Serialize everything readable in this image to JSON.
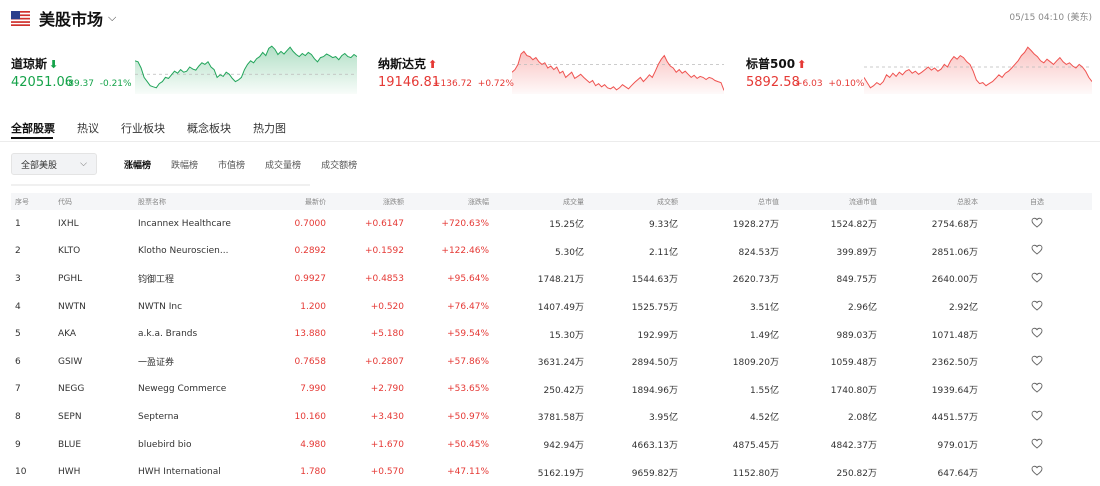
{
  "header": {
    "title": "美股市场",
    "time": "05/15 04:10 (美东)"
  },
  "indices": [
    {
      "name": "道琼斯",
      "direction": "down",
      "arrow": "⬇",
      "price": "42051.06",
      "change": "-89.37",
      "pct": "-0.21%",
      "series": [
        0.62,
        0.6,
        0.48,
        0.3,
        0.22,
        0.14,
        0.12,
        0.1,
        0.18,
        0.22,
        0.3,
        0.28,
        0.35,
        0.42,
        0.38,
        0.45,
        0.4,
        0.42,
        0.5,
        0.46,
        0.44,
        0.52,
        0.58,
        0.55,
        0.6,
        0.5,
        0.45,
        0.3,
        0.35,
        0.32,
        0.4,
        0.36,
        0.28,
        0.22,
        0.25,
        0.3,
        0.45,
        0.55,
        0.62,
        0.58,
        0.66,
        0.7,
        0.78,
        0.72,
        0.86,
        0.9,
        0.84,
        0.74,
        0.8,
        0.75,
        0.82,
        0.88,
        0.8,
        0.74,
        0.7,
        0.76,
        0.72,
        0.78,
        0.74,
        0.66,
        0.6,
        0.68,
        0.7,
        0.75,
        0.72,
        0.68,
        0.7,
        0.64,
        0.72,
        0.76,
        0.7,
        0.68,
        0.74,
        0.7
      ],
      "baseline": 0.36
    },
    {
      "name": "纳斯达克",
      "direction": "up",
      "arrow": "⬆",
      "price": "19146.81",
      "change": "+136.72",
      "pct": "+0.72%",
      "series": [
        0.4,
        0.45,
        0.55,
        0.75,
        0.8,
        0.72,
        0.7,
        0.64,
        0.68,
        0.6,
        0.55,
        0.58,
        0.48,
        0.52,
        0.45,
        0.5,
        0.38,
        0.42,
        0.3,
        0.35,
        0.4,
        0.28,
        0.32,
        0.36,
        0.3,
        0.25,
        0.2,
        0.24,
        0.14,
        0.18,
        0.12,
        0.16,
        0.1,
        0.08,
        0.12,
        0.06,
        0.1,
        0.16,
        0.12,
        0.08,
        0.14,
        0.2,
        0.25,
        0.3,
        0.22,
        0.28,
        0.35,
        0.3,
        0.42,
        0.55,
        0.65,
        0.72,
        0.6,
        0.52,
        0.48,
        0.4,
        0.45,
        0.38,
        0.42,
        0.36,
        0.3,
        0.34,
        0.28,
        0.32,
        0.3,
        0.26,
        0.3,
        0.28,
        0.24,
        0.22,
        0.2,
        0.05
      ],
      "baseline": 0.55
    },
    {
      "name": "标普500",
      "direction": "up",
      "arrow": "⬆",
      "price": "5892.58",
      "change": "+6.03",
      "pct": "+0.10%",
      "series": [
        0.3,
        0.2,
        0.1,
        0.14,
        0.2,
        0.16,
        0.22,
        0.35,
        0.3,
        0.38,
        0.32,
        0.4,
        0.35,
        0.42,
        0.45,
        0.38,
        0.42,
        0.36,
        0.4,
        0.45,
        0.5,
        0.44,
        0.48,
        0.42,
        0.46,
        0.55,
        0.5,
        0.62,
        0.7,
        0.65,
        0.72,
        0.68,
        0.6,
        0.55,
        0.42,
        0.25,
        0.18,
        0.2,
        0.14,
        0.18,
        0.22,
        0.28,
        0.35,
        0.3,
        0.38,
        0.42,
        0.48,
        0.55,
        0.62,
        0.72,
        0.78,
        0.88,
        0.82,
        0.75,
        0.7,
        0.62,
        0.58,
        0.65,
        0.6,
        0.55,
        0.62,
        0.68,
        0.6,
        0.55,
        0.58,
        0.52,
        0.48,
        0.55,
        0.5,
        0.42,
        0.3,
        0.22
      ],
      "baseline": 0.5
    }
  ],
  "tabs": [
    "全部股票",
    "热议",
    "行业板块",
    "概念板块",
    "热力图"
  ],
  "filter": {
    "label": "全部美股"
  },
  "subtabs": [
    "涨幅榜",
    "跌幅榜",
    "市值榜",
    "成交量榜",
    "成交额榜"
  ],
  "table": {
    "headers": [
      "序号",
      "代码",
      "股票名称",
      "最新价",
      "涨跌额",
      "涨跌幅",
      "成交量",
      "成交额",
      "总市值",
      "流通市值",
      "总股本",
      "自选"
    ],
    "rows": [
      [
        "1",
        "IXHL",
        "Incannex Healthcare",
        "0.7000",
        "+0.6147",
        "+720.63%",
        "15.25亿",
        "9.33亿",
        "1928.27万",
        "1524.82万",
        "2754.68万"
      ],
      [
        "2",
        "KLTO",
        "Klotho Neuroscien...",
        "0.2892",
        "+0.1592",
        "+122.46%",
        "5.30亿",
        "2.11亿",
        "824.53万",
        "399.89万",
        "2851.06万"
      ],
      [
        "3",
        "PGHL",
        "钧御工程",
        "0.9927",
        "+0.4853",
        "+95.64%",
        "1748.21万",
        "1544.63万",
        "2620.73万",
        "849.75万",
        "2640.00万"
      ],
      [
        "4",
        "NWTN",
        "NWTN Inc",
        "1.200",
        "+0.520",
        "+76.47%",
        "1407.49万",
        "1525.75万",
        "3.51亿",
        "2.96亿",
        "2.92亿"
      ],
      [
        "5",
        "AKA",
        "a.k.a. Brands",
        "13.880",
        "+5.180",
        "+59.54%",
        "15.30万",
        "192.99万",
        "1.49亿",
        "989.03万",
        "1071.48万"
      ],
      [
        "6",
        "GSIW",
        "一盈证券",
        "0.7658",
        "+0.2807",
        "+57.86%",
        "3631.24万",
        "2894.50万",
        "1809.20万",
        "1059.48万",
        "2362.50万"
      ],
      [
        "7",
        "NEGG",
        "Newegg Commerce",
        "7.990",
        "+2.790",
        "+53.65%",
        "250.42万",
        "1894.96万",
        "1.55亿",
        "1740.80万",
        "1939.64万"
      ],
      [
        "8",
        "SEPN",
        "Septerna",
        "10.160",
        "+3.430",
        "+50.97%",
        "3781.58万",
        "3.95亿",
        "4.52亿",
        "2.08亿",
        "4451.57万"
      ],
      [
        "9",
        "BLUE",
        "bluebird bio",
        "4.980",
        "+1.670",
        "+50.45%",
        "942.94万",
        "4663.13万",
        "4875.45万",
        "4842.37万",
        "979.01万"
      ],
      [
        "10",
        "HWH",
        "HWH International",
        "1.780",
        "+0.570",
        "+47.11%",
        "5162.19万",
        "9659.82万",
        "1152.80万",
        "250.82万",
        "647.64万"
      ]
    ]
  }
}
